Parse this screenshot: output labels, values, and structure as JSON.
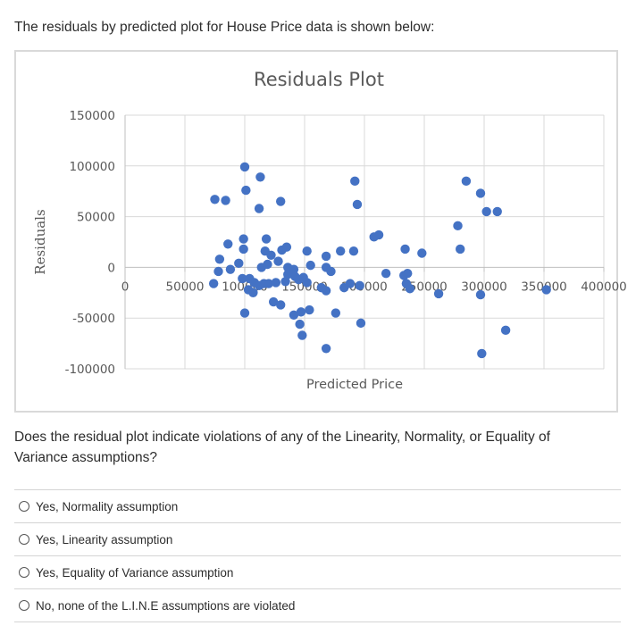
{
  "intro_text": "The residuals by predicted plot for House Price data is shown below:",
  "question_text": "Does the residual plot indicate violations of any of the Linearity, Normality, or Equality of Variance assumptions?",
  "options": [
    {
      "label": "Yes, Normality assumption",
      "selected": false
    },
    {
      "label": "Yes, Linearity assumption",
      "selected": false
    },
    {
      "label": "Yes, Equality of Variance assumption",
      "selected": false
    },
    {
      "label": "No, none of the L.I.N.E assumptions are violated",
      "selected": false
    }
  ],
  "chart_data": {
    "type": "scatter",
    "title": "Residuals Plot",
    "xlabel": "Predicted Price",
    "ylabel": "Residuals",
    "xlim": [
      0,
      400000
    ],
    "ylim": [
      -100000,
      150000
    ],
    "x_ticks": [
      0,
      50000,
      100000,
      150000,
      200000,
      250000,
      300000,
      350000,
      400000
    ],
    "x_tick_labels": [
      "0",
      "50000",
      "100000",
      "150000",
      "200000",
      "250000",
      "300000",
      "350000",
      "400000"
    ],
    "y_ticks": [
      -100000,
      -50000,
      0,
      50000,
      100000,
      150000
    ],
    "y_tick_labels": [
      "-100000",
      "-50000",
      "0",
      "50000",
      "100000",
      "150000"
    ],
    "grid": true,
    "legend": "none",
    "marker_color": "#4472C4",
    "points": [
      [
        75000,
        67000
      ],
      [
        84000,
        66000
      ],
      [
        100000,
        99000
      ],
      [
        101000,
        76000
      ],
      [
        113000,
        89000
      ],
      [
        112000,
        58000
      ],
      [
        130000,
        65000
      ],
      [
        192000,
        85000
      ],
      [
        194000,
        62000
      ],
      [
        285000,
        85000
      ],
      [
        297000,
        73000
      ],
      [
        302000,
        55000
      ],
      [
        311000,
        55000
      ],
      [
        278000,
        41000
      ],
      [
        280000,
        18000
      ],
      [
        86000,
        23000
      ],
      [
        99000,
        28000
      ],
      [
        99000,
        18000
      ],
      [
        118000,
        28000
      ],
      [
        117000,
        16000
      ],
      [
        122000,
        12000
      ],
      [
        131000,
        17000
      ],
      [
        135000,
        20000
      ],
      [
        152000,
        16000
      ],
      [
        168000,
        11000
      ],
      [
        180000,
        16000
      ],
      [
        191000,
        16000
      ],
      [
        208000,
        30000
      ],
      [
        212000,
        32000
      ],
      [
        234000,
        18000
      ],
      [
        248000,
        14000
      ],
      [
        79000,
        8000
      ],
      [
        95000,
        4000
      ],
      [
        88000,
        -2000
      ],
      [
        114000,
        0
      ],
      [
        128000,
        6000
      ],
      [
        119000,
        3000
      ],
      [
        136000,
        0
      ],
      [
        141000,
        -2000
      ],
      [
        155000,
        2000
      ],
      [
        168000,
        0
      ],
      [
        172000,
        -4000
      ],
      [
        78000,
        -4000
      ],
      [
        74000,
        -16000
      ],
      [
        98000,
        -11000
      ],
      [
        104000,
        -11000
      ],
      [
        108000,
        -15000
      ],
      [
        112000,
        -18000
      ],
      [
        103000,
        -22000
      ],
      [
        107000,
        -25000
      ],
      [
        116000,
        -16000
      ],
      [
        120000,
        -16000
      ],
      [
        126000,
        -15000
      ],
      [
        134000,
        -14000
      ],
      [
        136000,
        -7000
      ],
      [
        142000,
        -9000
      ],
      [
        145000,
        -12000
      ],
      [
        149000,
        -10000
      ],
      [
        152000,
        -15000
      ],
      [
        164000,
        -20000
      ],
      [
        168000,
        -23000
      ],
      [
        183000,
        -20000
      ],
      [
        188000,
        -16000
      ],
      [
        196000,
        -18000
      ],
      [
        218000,
        -6000
      ],
      [
        233000,
        -8000
      ],
      [
        236000,
        -6000
      ],
      [
        235000,
        -16000
      ],
      [
        238000,
        -21000
      ],
      [
        262000,
        -26000
      ],
      [
        297000,
        -27000
      ],
      [
        352000,
        -22000
      ],
      [
        100000,
        -45000
      ],
      [
        124000,
        -34000
      ],
      [
        130000,
        -37000
      ],
      [
        141000,
        -47000
      ],
      [
        147000,
        -44000
      ],
      [
        154000,
        -42000
      ],
      [
        146000,
        -56000
      ],
      [
        148000,
        -67000
      ],
      [
        176000,
        -45000
      ],
      [
        197000,
        -55000
      ],
      [
        168000,
        -80000
      ],
      [
        298000,
        -85000
      ],
      [
        318000,
        -62000
      ]
    ]
  }
}
